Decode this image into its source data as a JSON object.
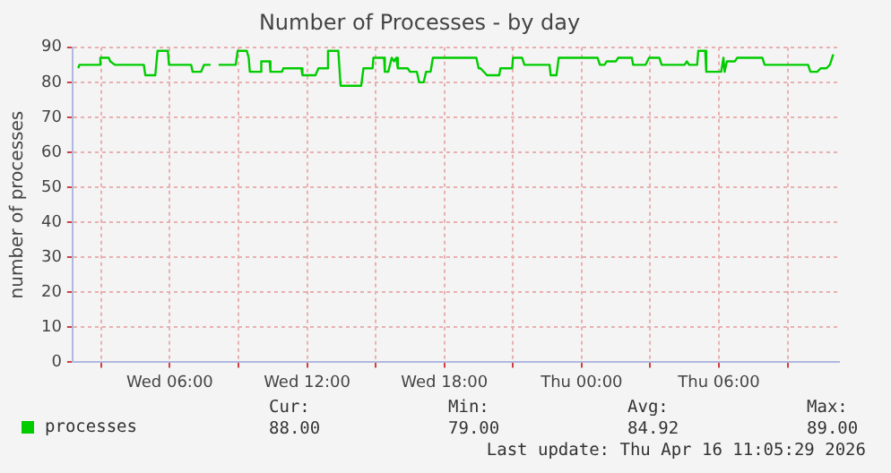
{
  "chart_data": {
    "type": "line",
    "title": "Number of Processes - by day",
    "ylabel": "number of processes",
    "x": [
      "2026-04-15T02:00",
      "2026-04-15T02:03",
      "2026-04-15T02:54",
      "2026-04-15T02:58",
      "2026-04-15T03:20",
      "2026-04-15T03:24",
      "2026-04-15T03:36",
      "2026-04-15T04:52",
      "2026-04-15T04:56",
      "2026-04-15T05:22",
      "2026-04-15T05:28",
      "2026-04-15T05:55",
      "2026-04-15T05:58",
      "2026-04-15T06:56",
      "2026-04-15T07:00",
      "2026-04-15T07:22",
      "2026-04-15T07:30",
      "2026-04-15T07:47",
      "2026-04-15T07:54",
      "2026-04-15T08:08",
      "2026-04-15T08:53",
      "2026-04-15T08:58",
      "2026-04-15T09:22",
      "2026-04-15T09:27",
      "2026-04-15T09:30",
      "2026-04-15T09:58",
      "2026-04-15T10:00",
      "2026-04-15T10:22",
      "2026-04-15T10:24",
      "2026-04-15T10:54",
      "2026-04-15T10:58",
      "2026-04-15T11:45",
      "2026-04-15T11:48",
      "2026-04-15T12:22",
      "2026-04-15T12:30",
      "2026-04-15T12:53",
      "2026-04-15T12:55",
      "2026-04-15T13:22",
      "2026-04-15T13:28",
      "2026-04-15T14:22",
      "2026-04-15T14:28",
      "2026-04-15T14:52",
      "2026-04-15T14:54",
      "2026-04-15T15:22",
      "2026-04-15T15:24",
      "2026-04-15T15:33",
      "2026-04-15T15:42",
      "2026-04-15T15:48",
      "2026-04-15T15:54",
      "2026-04-15T15:58",
      "2026-04-15T16:24",
      "2026-04-15T16:30",
      "2026-04-15T16:48",
      "2026-04-15T16:54",
      "2026-04-15T17:06",
      "2026-04-15T17:12",
      "2026-04-15T17:24",
      "2026-04-15T17:30",
      "2026-04-15T19:24",
      "2026-04-15T19:30",
      "2026-04-15T19:35",
      "2026-04-15T19:52",
      "2026-04-15T20:24",
      "2026-04-15T20:27",
      "2026-04-15T20:58",
      "2026-04-15T21:00",
      "2026-04-15T21:24",
      "2026-04-15T21:30",
      "2026-04-15T22:36",
      "2026-04-15T22:39",
      "2026-04-15T22:54",
      "2026-04-15T23:00",
      "2026-04-16T00:42",
      "2026-04-16T00:48",
      "2026-04-16T01:00",
      "2026-04-16T01:06",
      "2026-04-16T01:30",
      "2026-04-16T01:36",
      "2026-04-16T02:12",
      "2026-04-16T02:15",
      "2026-04-16T02:48",
      "2026-04-16T02:57",
      "2026-04-16T03:24",
      "2026-04-16T03:30",
      "2026-04-16T04:30",
      "2026-04-16T04:36",
      "2026-04-16T04:42",
      "2026-04-16T05:03",
      "2026-04-16T05:06",
      "2026-04-16T05:24",
      "2026-04-16T05:27",
      "2026-04-16T06:06",
      "2026-04-16T06:12",
      "2026-04-16T06:15",
      "2026-04-16T06:21",
      "2026-04-16T06:42",
      "2026-04-16T06:48",
      "2026-04-16T07:54",
      "2026-04-16T08:00",
      "2026-04-16T09:54",
      "2026-04-16T10:00",
      "2026-04-16T10:18",
      "2026-04-16T10:27",
      "2026-04-16T10:42",
      "2026-04-16T10:51",
      "2026-04-16T11:00"
    ],
    "series": [
      {
        "name": "processes",
        "color": "#00cc00",
        "values": [
          84,
          85,
          85,
          87,
          87,
          86,
          85,
          85,
          82,
          82,
          89,
          89,
          85,
          85,
          83,
          83,
          85,
          85,
          null,
          85,
          85,
          89,
          89,
          87,
          83,
          83,
          86,
          86,
          83,
          83,
          84,
          84,
          82,
          82,
          84,
          84,
          89,
          89,
          79,
          79,
          84,
          84,
          87,
          87,
          83,
          83,
          87,
          86,
          87,
          84,
          84,
          83,
          83,
          80,
          80,
          83,
          83,
          87,
          87,
          84,
          84,
          82,
          82,
          84,
          84,
          87,
          87,
          85,
          85,
          82,
          82,
          87,
          87,
          85,
          85,
          86,
          86,
          87,
          87,
          85,
          85,
          87,
          87,
          85,
          85,
          86,
          85,
          85,
          89,
          89,
          83,
          83,
          87,
          83,
          86,
          86,
          87,
          87,
          85,
          85,
          83,
          83,
          84,
          84,
          85,
          88
        ]
      }
    ],
    "xlim": [
      "2026-04-15T01:45",
      "2026-04-16T11:15"
    ],
    "xticks": [
      {
        "value": "2026-04-15T03:00",
        "label": null
      },
      {
        "value": "2026-04-15T06:00",
        "label": "Wed 06:00"
      },
      {
        "value": "2026-04-15T09:00",
        "label": null
      },
      {
        "value": "2026-04-15T12:00",
        "label": "Wed 12:00"
      },
      {
        "value": "2026-04-15T15:00",
        "label": null
      },
      {
        "value": "2026-04-15T18:00",
        "label": "Wed 18:00"
      },
      {
        "value": "2026-04-15T21:00",
        "label": null
      },
      {
        "value": "2026-04-16T00:00",
        "label": "Thu 00:00"
      },
      {
        "value": "2026-04-16T03:00",
        "label": null
      },
      {
        "value": "2026-04-16T06:00",
        "label": "Thu 06:00"
      },
      {
        "value": "2026-04-16T09:00",
        "label": null
      }
    ],
    "ylim": [
      0,
      90
    ],
    "yticks": [
      0,
      10,
      20,
      30,
      40,
      50,
      60,
      70,
      80,
      90
    ],
    "grid": true,
    "legend": "bottom left",
    "marker": "none",
    "line_style": "solid",
    "annotations": [
      "Cur:",
      "88.00",
      "Min:",
      "79.00",
      "Avg:",
      "84.92",
      "Max:",
      "89.00",
      "Last update: Thu Apr 16 11:05:29 2026"
    ]
  }
}
